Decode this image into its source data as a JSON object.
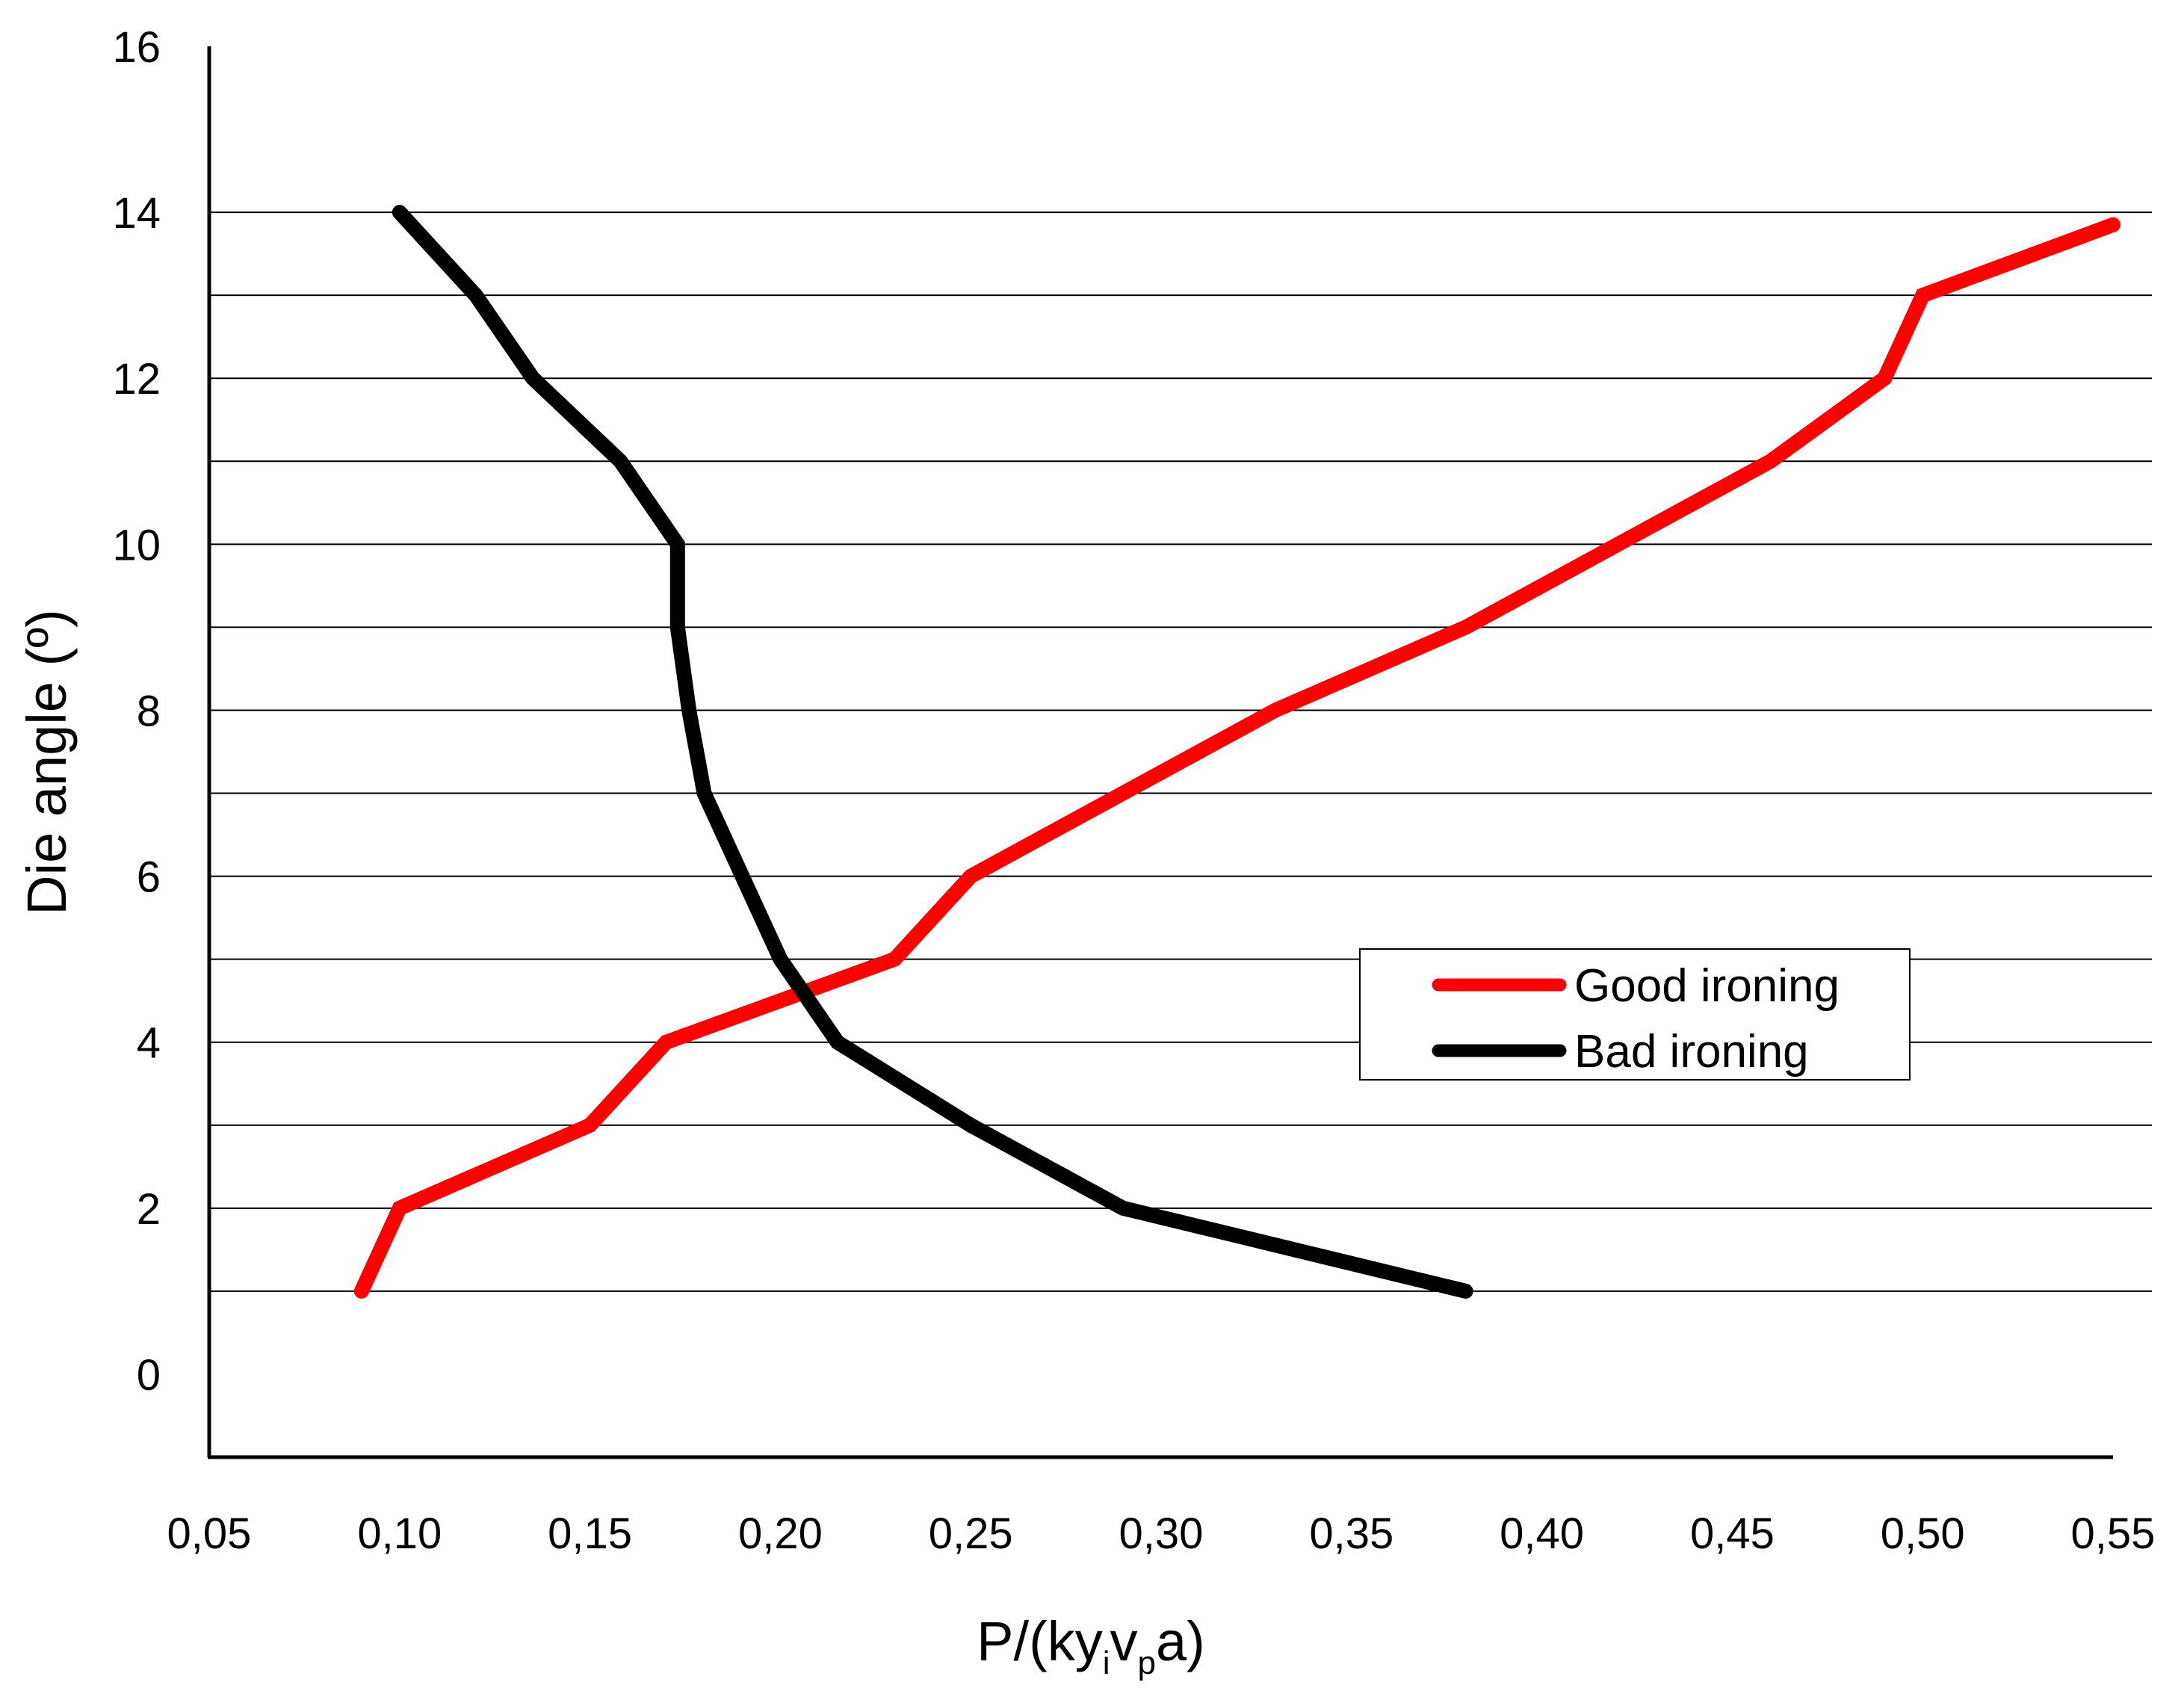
{
  "chart_data": {
    "type": "line",
    "title": "",
    "xlabel": {
      "main": "P/(ky",
      "sub1": "i",
      "mid": "v",
      "sub2": "p",
      "end": "a)"
    },
    "ylabel": "Die angle (º)",
    "xlim": [
      0.05,
      0.55
    ],
    "ylim": [
      -1,
      16
    ],
    "x_ticks": [
      0.05,
      0.1,
      0.15,
      0.2,
      0.25,
      0.3,
      0.35,
      0.4,
      0.45,
      0.5,
      0.55
    ],
    "x_tick_labels": [
      "0,05",
      "0,10",
      "0,15",
      "0,20",
      "0,25",
      "0,30",
      "0,35",
      "0,40",
      "0,45",
      "0,50",
      "0,55"
    ],
    "y_ticks": [
      0,
      2,
      4,
      6,
      8,
      10,
      12,
      14,
      16
    ],
    "y_tick_labels": [
      "0",
      "2",
      "4",
      "6",
      "8",
      "10",
      "12",
      "14",
      "16"
    ],
    "gridlines_y": [
      1,
      2,
      3,
      4,
      5,
      6,
      7,
      8,
      9,
      10,
      11,
      12,
      13,
      14
    ],
    "legend_position": "center-right",
    "series": [
      {
        "name": "Good ironing",
        "color": "#ff0000",
        "points": [
          [
            0.09,
            1
          ],
          [
            0.1,
            2
          ],
          [
            0.15,
            3
          ],
          [
            0.17,
            4
          ],
          [
            0.23,
            5
          ],
          [
            0.25,
            6
          ],
          [
            0.29,
            7
          ],
          [
            0.33,
            8
          ],
          [
            0.38,
            9
          ],
          [
            0.42,
            10
          ],
          [
            0.46,
            11
          ],
          [
            0.49,
            12
          ],
          [
            0.5,
            13
          ],
          [
            0.55,
            13.85
          ]
        ]
      },
      {
        "name": "Bad ironing",
        "color": "#000000",
        "points": [
          [
            0.38,
            1
          ],
          [
            0.29,
            2
          ],
          [
            0.25,
            3
          ],
          [
            0.215,
            4
          ],
          [
            0.2,
            5
          ],
          [
            0.19,
            6
          ],
          [
            0.18,
            7
          ],
          [
            0.176,
            8
          ],
          [
            0.173,
            9
          ],
          [
            0.173,
            10
          ],
          [
            0.158,
            11
          ],
          [
            0.135,
            12
          ],
          [
            0.12,
            13
          ],
          [
            0.1,
            14
          ]
        ]
      }
    ]
  }
}
